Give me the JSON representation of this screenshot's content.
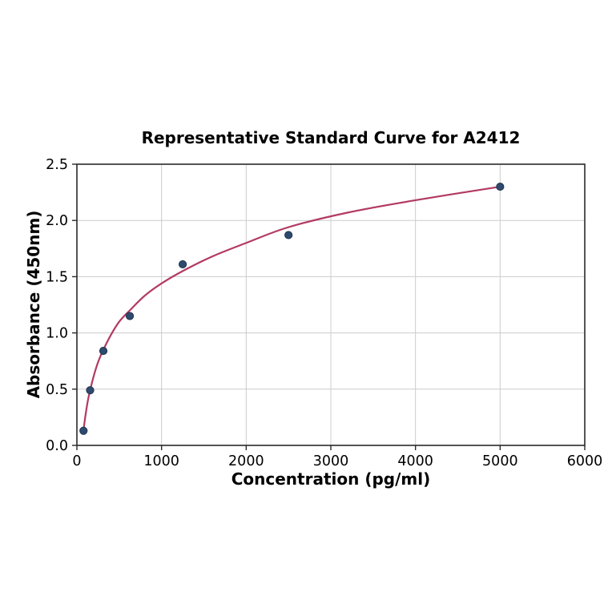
{
  "chart_data": {
    "type": "scatter",
    "title": "Representative Standard Curve for A2412",
    "xlabel": "Concentration (pg/ml)",
    "ylabel": "Absorbance (450nm)",
    "xlim": [
      0,
      6000
    ],
    "ylim": [
      0,
      2.5
    ],
    "x_ticks": [
      0,
      1000,
      2000,
      3000,
      4000,
      5000,
      6000
    ],
    "y_ticks": [
      0.0,
      0.5,
      1.0,
      1.5,
      2.0,
      2.5
    ],
    "grid": true,
    "legend": false,
    "points": {
      "x": [
        78.125,
        156.25,
        312.5,
        625,
        1250,
        2500,
        5000
      ],
      "y": [
        0.13,
        0.49,
        0.84,
        1.15,
        1.61,
        1.87,
        2.3
      ]
    },
    "fit_curve": {
      "description": "logarithmic 4PL-style fitted trend line from first to last standard point",
      "x": [
        78.125,
        100,
        130,
        156.25,
        200,
        250,
        312.5,
        400,
        500,
        625,
        800,
        1000,
        1250,
        1600,
        2000,
        2500,
        3200,
        4000,
        5000
      ],
      "y": [
        0.135,
        0.26,
        0.4,
        0.49,
        0.62,
        0.74,
        0.85,
        0.98,
        1.1,
        1.2,
        1.33,
        1.44,
        1.55,
        1.68,
        1.8,
        1.94,
        2.07,
        2.18,
        2.3
      ]
    },
    "colors": {
      "curve": "#b23a63",
      "marker_fill": "#2e4a6e",
      "marker_edge": "#1f3450",
      "grid": "#cccccc",
      "axis": "#2a2a2a",
      "text": "#000000",
      "background": "#ffffff"
    }
  }
}
